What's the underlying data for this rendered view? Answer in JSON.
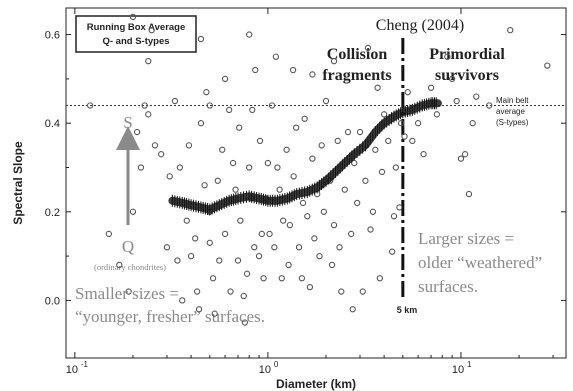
{
  "chart_data": {
    "type": "scatter",
    "title": "",
    "xlabel": "Diameter (km)",
    "ylabel": "Spectral Slope",
    "xscale": "log",
    "xlim": [
      0.09,
      35
    ],
    "ylim": [
      -0.13,
      0.66
    ],
    "x_ticks": [
      0.1,
      1,
      10
    ],
    "x_tick_labels": [
      "10",
      "10",
      "10"
    ],
    "x_tick_exponents": [
      "-1",
      "0",
      "1"
    ],
    "y_ticks": [
      0.0,
      0.2,
      0.4,
      0.6
    ],
    "y_tick_labels": [
      "0.0",
      "0.2",
      "0.4",
      "0.6"
    ],
    "legend_box": {
      "line1": "Running Box Average",
      "line2": "Q- and S-types",
      "placement": "top-left"
    },
    "reference_line": {
      "y": 0.44,
      "label_lines": [
        "Main belt",
        "average",
        "(S-types)"
      ]
    },
    "vertical_line": {
      "x": 5,
      "label": "5 km",
      "title": "Cheng (2004)"
    },
    "annotations": {
      "left_region": [
        "Collision",
        "fragments"
      ],
      "right_region": [
        "Primordial",
        "survivors"
      ],
      "arrow_top": "S",
      "arrow_bottom": "Q",
      "chondrites": "(ordinary chondrites)",
      "small_text": [
        "Smaller sizes =",
        "“younger, fresher” surfaces."
      ],
      "large_text": [
        "Larger sizes =",
        "older “weathered”",
        "surfaces."
      ]
    },
    "colors": {
      "points": "#555555",
      "running_average": "#1a1a1a",
      "annotation_gray": "#8a8a8a",
      "text": "#222222"
    },
    "series": [
      {
        "kind": "running_average",
        "x": [
          0.32,
          0.36,
          0.4,
          0.45,
          0.5,
          0.56,
          0.63,
          0.7,
          0.8,
          0.9,
          1.0,
          1.12,
          1.26,
          1.41,
          1.6,
          1.8,
          2.0,
          2.24,
          2.5,
          2.8,
          3.2,
          3.6,
          4.0,
          4.5,
          5.0,
          5.6,
          6.3,
          7.0,
          7.6
        ],
        "y": [
          0.225,
          0.22,
          0.215,
          0.21,
          0.205,
          0.215,
          0.225,
          0.23,
          0.235,
          0.23,
          0.225,
          0.225,
          0.23,
          0.24,
          0.245,
          0.255,
          0.27,
          0.29,
          0.31,
          0.33,
          0.35,
          0.38,
          0.4,
          0.415,
          0.425,
          0.43,
          0.44,
          0.445,
          0.445
        ]
      },
      {
        "kind": "individual",
        "points": [
          [
            0.12,
            0.44
          ],
          [
            0.15,
            0.15
          ],
          [
            0.17,
            0.08
          ],
          [
            0.19,
            0.02
          ],
          [
            0.2,
            0.2
          ],
          [
            0.22,
            0.3
          ],
          [
            0.21,
            0.38
          ],
          [
            0.24,
            0.54
          ],
          [
            0.24,
            0.42
          ],
          [
            0.26,
            0.35
          ],
          [
            0.28,
            0.33
          ],
          [
            0.3,
            0.12
          ],
          [
            0.31,
            0.28
          ],
          [
            0.33,
            0.45
          ],
          [
            0.34,
            0.09
          ],
          [
            0.36,
            0.0
          ],
          [
            0.38,
            0.18
          ],
          [
            0.35,
            0.3
          ],
          [
            0.39,
            0.35
          ],
          [
            0.4,
            0.1
          ],
          [
            0.42,
            0.14
          ],
          [
            0.43,
            0.02
          ],
          [
            0.44,
            -0.02
          ],
          [
            0.45,
            0.4
          ],
          [
            0.47,
            0.26
          ],
          [
            0.48,
            0.47
          ],
          [
            0.5,
            0.2
          ],
          [
            0.5,
            0.13
          ],
          [
            0.52,
            0.05
          ],
          [
            0.53,
            -0.03
          ],
          [
            0.55,
            0.27
          ],
          [
            0.56,
            0.09
          ],
          [
            0.58,
            0.34
          ],
          [
            0.6,
            0.5
          ],
          [
            0.6,
            0.15
          ],
          [
            0.63,
            0.43
          ],
          [
            0.64,
            0.02
          ],
          [
            0.66,
            0.31
          ],
          [
            0.68,
            0.25
          ],
          [
            0.7,
            0.09
          ],
          [
            0.71,
            0.39
          ],
          [
            0.72,
            0.18
          ],
          [
            0.75,
            0.01
          ],
          [
            0.76,
            -0.05
          ],
          [
            0.78,
            0.06
          ],
          [
            0.8,
            0.3
          ],
          [
            0.82,
            0.23
          ],
          [
            0.83,
            0.43
          ],
          [
            0.85,
            0.12
          ],
          [
            0.86,
            0.52
          ],
          [
            0.9,
            0.1
          ],
          [
            0.91,
            0.36
          ],
          [
            0.93,
            0.15
          ],
          [
            0.95,
            0.05
          ],
          [
            0.98,
            0.23
          ],
          [
            1.0,
            0.31
          ],
          [
            1.02,
            0.15
          ],
          [
            1.05,
            0.44
          ],
          [
            1.08,
            0.12
          ],
          [
            1.12,
            0.3
          ],
          [
            1.15,
            0.25
          ],
          [
            1.18,
            0.05
          ],
          [
            1.2,
            0.18
          ],
          [
            1.25,
            0.34
          ],
          [
            1.28,
            0.08
          ],
          [
            1.3,
            0.17
          ],
          [
            1.36,
            0.28
          ],
          [
            1.4,
            0.39
          ],
          [
            1.45,
            0.12
          ],
          [
            1.5,
            0.05
          ],
          [
            1.52,
            0.22
          ],
          [
            1.55,
            0.41
          ],
          [
            1.6,
            0.19
          ],
          [
            1.65,
            0.03
          ],
          [
            1.7,
            0.32
          ],
          [
            1.74,
            0.14
          ],
          [
            1.8,
            0.24
          ],
          [
            1.85,
            0.1
          ],
          [
            1.9,
            0.35
          ],
          [
            1.95,
            0.2
          ],
          [
            2.0,
            0.45
          ],
          [
            2.1,
            0.27
          ],
          [
            2.15,
            0.08
          ],
          [
            2.2,
            0.17
          ],
          [
            2.3,
            0.36
          ],
          [
            2.35,
            0.12
          ],
          [
            2.4,
            0.02
          ],
          [
            2.5,
            0.25
          ],
          [
            2.6,
            0.38
          ],
          [
            2.7,
            0.15
          ],
          [
            2.75,
            -0.02
          ],
          [
            2.8,
            0.31
          ],
          [
            2.9,
            0.22
          ],
          [
            3.0,
            0.38
          ],
          [
            3.1,
            0.02
          ],
          [
            3.2,
            0.27
          ],
          [
            3.4,
            0.16
          ],
          [
            3.5,
            0.2
          ],
          [
            3.6,
            0.34
          ],
          [
            3.7,
            0.48
          ],
          [
            3.8,
            0.05
          ],
          [
            3.9,
            0.29
          ],
          [
            4.0,
            0.42
          ],
          [
            4.2,
            0.36
          ],
          [
            4.4,
            0.11
          ],
          [
            4.5,
            0.19
          ],
          [
            4.6,
            0.3
          ],
          [
            4.8,
            0.21
          ],
          [
            4.9,
            0.4
          ],
          [
            5.1,
            0.37
          ],
          [
            5.3,
            0.47
          ],
          [
            5.6,
            0.36
          ],
          [
            6.0,
            0.4
          ],
          [
            6.4,
            0.33
          ],
          [
            7.0,
            0.48
          ],
          [
            7.5,
            0.42
          ],
          [
            8.5,
            0.55
          ],
          [
            9.0,
            0.5
          ],
          [
            9.5,
            0.45
          ],
          [
            10.0,
            0.32
          ],
          [
            10.5,
            0.33
          ],
          [
            11.0,
            0.24
          ],
          [
            11.5,
            0.4
          ],
          [
            12.0,
            0.46
          ],
          [
            14.0,
            0.44
          ],
          [
            18.0,
            0.61
          ],
          [
            28.0,
            0.53
          ],
          [
            3.3,
            0.57
          ],
          [
            1.35,
            0.52
          ],
          [
            0.2,
            0.64
          ],
          [
            0.23,
            0.44
          ],
          [
            0.25,
            0.61
          ],
          [
            0.5,
            0.44
          ],
          [
            0.45,
            0.59
          ],
          [
            0.8,
            0.6
          ],
          [
            1.1,
            0.55
          ],
          [
            1.7,
            0.51
          ],
          [
            2.2,
            0.54
          ]
        ]
      }
    ]
  }
}
